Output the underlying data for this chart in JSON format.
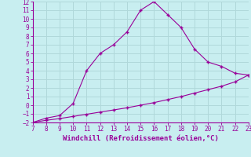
{
  "xlabel": "Windchill (Refroidissement éolien,°C)",
  "xlim": [
    7,
    23
  ],
  "ylim": [
    -2,
    12
  ],
  "xticks": [
    7,
    8,
    9,
    10,
    11,
    12,
    13,
    14,
    15,
    16,
    17,
    18,
    19,
    20,
    21,
    22,
    23
  ],
  "yticks": [
    -2,
    -1,
    0,
    1,
    2,
    3,
    4,
    5,
    6,
    7,
    8,
    9,
    10,
    11,
    12
  ],
  "curve1_x": [
    7,
    8,
    9,
    10,
    11,
    12,
    13,
    14,
    15,
    16,
    17,
    18,
    19,
    20,
    21,
    22,
    23
  ],
  "curve1_y": [
    -2,
    -1.5,
    -1.2,
    0.2,
    4.0,
    6.0,
    7.0,
    8.5,
    11.0,
    12.0,
    10.5,
    9.0,
    6.5,
    5.0,
    4.5,
    3.7,
    3.5
  ],
  "curve2_x": [
    7,
    8,
    9,
    10,
    11,
    12,
    13,
    14,
    15,
    16,
    17,
    18,
    19,
    20,
    21,
    22,
    23
  ],
  "curve2_y": [
    -2.0,
    -1.75,
    -1.55,
    -1.3,
    -1.05,
    -0.8,
    -0.55,
    -0.3,
    -0.0,
    0.3,
    0.65,
    1.0,
    1.4,
    1.8,
    2.2,
    2.7,
    3.5
  ],
  "line_color": "#990099",
  "marker": "+",
  "bg_color": "#c8eef0",
  "grid_color": "#b0d8da",
  "tick_color": "#990099",
  "label_color": "#990099",
  "font_family": "monospace",
  "tick_fontsize": 5.5,
  "xlabel_fontsize": 6.5
}
